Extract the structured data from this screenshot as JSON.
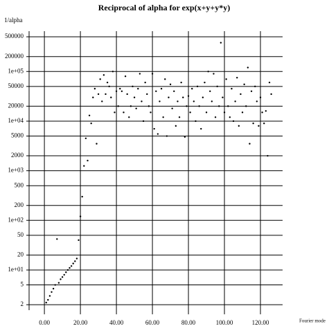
{
  "chart_data": {
    "type": "scatter",
    "title": "Reciprocal of alpha for exp(x+y+y*y)",
    "ylabel": "1/alpha",
    "xlabel": "Fourier mode",
    "x": [
      1,
      2,
      3,
      4,
      5,
      6,
      7,
      8,
      9,
      10,
      11,
      12,
      13,
      14,
      15,
      16,
      17,
      18,
      19,
      20,
      21,
      22,
      23,
      24,
      25,
      26,
      27,
      28,
      29,
      30,
      31,
      32,
      33,
      34,
      35,
      36,
      37,
      38,
      39,
      40,
      41,
      42,
      43,
      44,
      45,
      46,
      47,
      48,
      49,
      50,
      51,
      52,
      53,
      54,
      55,
      56,
      57,
      58,
      59,
      60,
      61,
      62,
      63,
      64,
      65,
      66,
      67,
      68,
      69,
      70,
      71,
      72,
      73,
      74,
      75,
      76,
      77,
      78,
      79,
      80,
      81,
      82,
      83,
      84,
      85,
      86,
      87,
      88,
      89,
      90,
      91,
      92,
      93,
      94,
      95,
      96,
      97,
      98,
      99,
      100,
      101,
      102,
      103,
      104,
      105,
      106,
      107,
      108,
      109,
      110,
      111,
      112,
      113,
      114,
      115,
      116,
      117,
      118,
      119,
      120,
      121,
      122,
      123,
      124,
      125,
      126
    ],
    "values": [
      2.2,
      2.5,
      3.0,
      3.6,
      4.2,
      5.0,
      42,
      5.5,
      6.5,
      7.2,
      8.0,
      9.0,
      10,
      11,
      12,
      13.5,
      15,
      17,
      40,
      120,
      300,
      1250,
      4500,
      1600,
      13000,
      9000,
      30000,
      45000,
      3500,
      35000,
      70000,
      25000,
      85000,
      35000,
      60000,
      50000,
      30000,
      100000,
      15000,
      40000,
      20000,
      45000,
      40000,
      15000,
      80000,
      35000,
      12000,
      20000,
      50000,
      30000,
      18000,
      45000,
      90000,
      25000,
      10000,
      60000,
      35000,
      20000,
      15000,
      90000,
      7000,
      40000,
      5500,
      25000,
      45000,
      12000,
      70000,
      5000,
      30000,
      55000,
      18000,
      40000,
      8000,
      25000,
      12000,
      60000,
      30000,
      4800,
      20000,
      32000,
      15000,
      45000,
      25000,
      10000,
      50000,
      20000,
      7000,
      30000,
      60000,
      15000,
      100000,
      40000,
      25000,
      90000,
      12000,
      50000,
      20000,
      380000,
      30000,
      15000,
      70000,
      20000,
      12000,
      45000,
      10000,
      25000,
      75000,
      8000,
      35000,
      15000,
      55000,
      20000,
      120000,
      3500,
      40000,
      9000,
      50000,
      25000,
      8000,
      30000,
      15000,
      9000,
      16000,
      2000,
      60000,
      35000
    ],
    "color": "#000000",
    "xlim": [
      -8.5,
      132.3
    ],
    "ylim": [
      1.55,
      650000
    ],
    "ylog": true,
    "grid": true,
    "xticks": [
      {
        "value": 0,
        "label": "0.00"
      },
      {
        "value": 20,
        "label": "20.00"
      },
      {
        "value": 40,
        "label": "40.00"
      },
      {
        "value": 60,
        "label": "60.00"
      },
      {
        "value": 80,
        "label": "80.00"
      },
      {
        "value": 100,
        "label": "100.00"
      },
      {
        "value": 120,
        "label": "120.00"
      }
    ],
    "yticks": [
      2,
      5,
      {
        "value": 10,
        "label": "1e+01"
      },
      20,
      50,
      {
        "value": 100,
        "label": "1e+02"
      },
      200,
      500,
      {
        "value": 1000,
        "label": "1e+03"
      },
      2000,
      5000,
      {
        "value": 10000,
        "label": "1e+04"
      },
      20000,
      50000,
      {
        "value": 100000,
        "label": "1e+05"
      },
      200000,
      500000
    ]
  }
}
